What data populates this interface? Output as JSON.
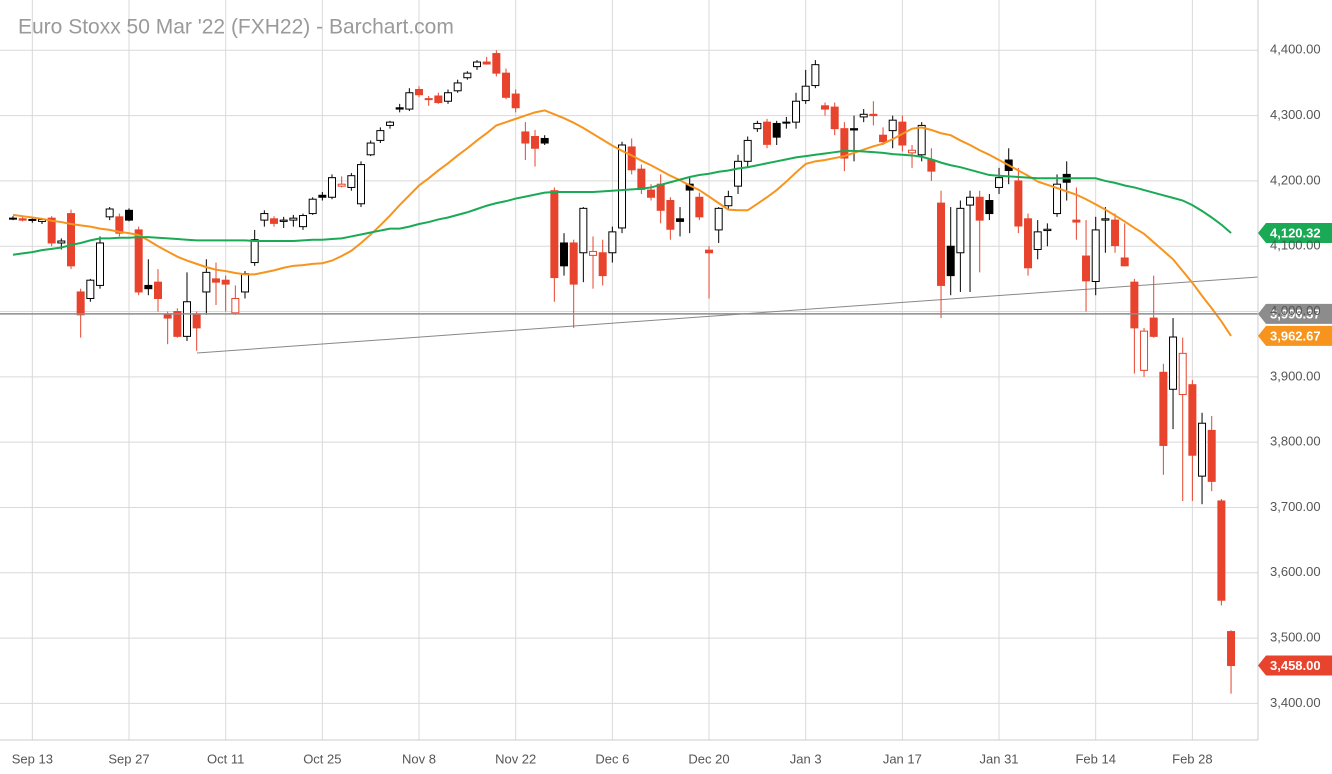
{
  "chart_data": {
    "type": "candlestick",
    "title": "Euro Stoxx 50 Mar '22 (FXH22) - Barchart.com",
    "categories": [
      null,
      null,
      "Sep 13",
      null,
      null,
      null,
      null,
      null,
      null,
      null,
      null,
      null,
      "Sep 27",
      null,
      null,
      null,
      null,
      null,
      null,
      null,
      null,
      null,
      "Oct 11",
      null,
      null,
      null,
      null,
      null,
      null,
      null,
      null,
      null,
      "Oct 25",
      null,
      null,
      null,
      null,
      null,
      null,
      null,
      null,
      null,
      "Nov 8",
      null,
      null,
      null,
      null,
      null,
      null,
      null,
      null,
      null,
      "Nov 22",
      null,
      null,
      null,
      null,
      null,
      null,
      null,
      null,
      null,
      "Dec 6",
      null,
      null,
      null,
      null,
      null,
      null,
      null,
      null,
      null,
      "Dec 20",
      null,
      null,
      null,
      null,
      null,
      null,
      null,
      null,
      null,
      "Jan 3",
      null,
      null,
      null,
      null,
      null,
      null,
      null,
      null,
      null,
      "Jan 17",
      null,
      null,
      null,
      null,
      null,
      null,
      null,
      null,
      null,
      "Jan 31",
      null,
      null,
      null,
      null,
      null,
      null,
      null,
      null,
      null,
      "Feb 14",
      null,
      null,
      null,
      null,
      null,
      null,
      null,
      null,
      null,
      "Feb 28",
      null,
      null,
      null,
      null
    ],
    "open": [
      4143,
      4142,
      4140,
      4138,
      4143,
      4105,
      4150,
      4030,
      4020,
      4040,
      4145,
      4145,
      4155,
      4125,
      4040,
      4045,
      3995,
      4000,
      3962,
      3995,
      4030,
      4050,
      4048,
      3998,
      4030,
      4075,
      4140,
      4142,
      4138,
      4140,
      4130,
      4150,
      4178,
      4175,
      4192,
      4190,
      4165,
      4240,
      4262,
      4285,
      4312,
      4310,
      4340,
      4326,
      4330,
      4322,
      4338,
      4358,
      4375,
      4382,
      4395,
      4365,
      4333,
      4275,
      4268,
      4265,
      4185,
      4105,
      4105,
      4090,
      4086,
      4090,
      4090,
      4128,
      4252,
      4218,
      4186,
      4195,
      4170,
      4142,
      4195,
      4175,
      4094,
      4125,
      4162,
      4192,
      4230,
      4280,
      4290,
      4288,
      4290,
      4290,
      4323,
      4346,
      4315,
      4313,
      4280,
      4280,
      4298,
      4302,
      4270,
      4277,
      4290,
      4243,
      4240,
      4232,
      4166,
      4100,
      4090,
      4163,
      4175,
      4170,
      4190,
      4232,
      4200,
      4142,
      4095,
      4124,
      4150,
      4210,
      4140,
      4085,
      4046,
      4140,
      4140,
      4082,
      4045,
      3910,
      3990,
      3907,
      3881,
      3873,
      3888,
      3748,
      3818,
      3710,
      3510
    ],
    "high": [
      4146,
      4145,
      4143,
      4143,
      4146,
      4112,
      4156,
      4035,
      4050,
      4115,
      4160,
      4150,
      4158,
      4130,
      4080,
      4065,
      4000,
      4005,
      4060,
      4000,
      4080,
      4075,
      4055,
      4040,
      4062,
      4125,
      4155,
      4146,
      4145,
      4148,
      4150,
      4175,
      4183,
      4210,
      4207,
      4212,
      4230,
      4262,
      4282,
      4292,
      4318,
      4342,
      4345,
      4330,
      4335,
      4340,
      4355,
      4368,
      4385,
      4390,
      4400,
      4372,
      4340,
      4290,
      4278,
      4270,
      4190,
      4120,
      4110,
      4160,
      4115,
      4110,
      4130,
      4260,
      4265,
      4225,
      4195,
      4210,
      4175,
      4160,
      4205,
      4182,
      4100,
      4160,
      4185,
      4240,
      4268,
      4292,
      4295,
      4292,
      4298,
      4335,
      4370,
      4385,
      4320,
      4320,
      4290,
      4300,
      4310,
      4322,
      4282,
      4300,
      4300,
      4255,
      4290,
      4250,
      4185,
      4160,
      4170,
      4185,
      4185,
      4180,
      4220,
      4250,
      4220,
      4150,
      4140,
      4135,
      4210,
      4230,
      4190,
      4140,
      4145,
      4160,
      4150,
      4135,
      4050,
      3975,
      4055,
      3920,
      3990,
      3960,
      3895,
      3845,
      3840,
      3713,
      3512
    ],
    "low": [
      4140,
      4138,
      4136,
      4134,
      4100,
      4095,
      4065,
      3960,
      4015,
      4035,
      4140,
      4115,
      4138,
      4025,
      4025,
      4000,
      3950,
      3960,
      3955,
      3940,
      3995,
      4010,
      4000,
      3995,
      4020,
      4070,
      4130,
      4130,
      4128,
      4130,
      4125,
      4148,
      4170,
      4172,
      4190,
      4185,
      4160,
      4238,
      4258,
      4280,
      4305,
      4307,
      4328,
      4315,
      4318,
      4318,
      4335,
      4355,
      4370,
      4378,
      4360,
      4325,
      4305,
      4232,
      4222,
      4255,
      4015,
      4055,
      3975,
      4045,
      4035,
      4040,
      4075,
      4120,
      4210,
      4180,
      4170,
      4135,
      4110,
      4115,
      4120,
      4140,
      4020,
      4105,
      4155,
      4180,
      4220,
      4275,
      4250,
      4255,
      4280,
      4280,
      4318,
      4342,
      4300,
      4270,
      4215,
      4230,
      4290,
      4285,
      4255,
      4250,
      4245,
      4220,
      4230,
      4200,
      3990,
      4025,
      4030,
      4030,
      4060,
      4140,
      4180,
      4195,
      4120,
      4055,
      4080,
      4100,
      4145,
      4170,
      4110,
      4000,
      4025,
      4090,
      4090,
      4070,
      3905,
      3900,
      3960,
      3750,
      3820,
      3710,
      3710,
      3705,
      3725,
      3550,
      3415
    ],
    "close": [
      4142,
      4140,
      4141,
      4141,
      4105,
      4108,
      4070,
      3995,
      4048,
      4105,
      4157,
      4120,
      4140,
      4030,
      4035,
      4020,
      3990,
      3962,
      4015,
      3975,
      4060,
      4045,
      4042,
      4020,
      4058,
      4110,
      4150,
      4135,
      4140,
      4143,
      4147,
      4172,
      4175,
      4205,
      4195,
      4208,
      4225,
      4258,
      4277,
      4290,
      4310,
      4335,
      4332,
      4325,
      4320,
      4335,
      4350,
      4365,
      4382,
      4379,
      4365,
      4328,
      4312,
      4258,
      4250,
      4258,
      4052,
      4070,
      4042,
      4158,
      4092,
      4055,
      4122,
      4255,
      4217,
      4187,
      4175,
      4155,
      4126,
      4138,
      4186,
      4145,
      4090,
      4158,
      4176,
      4230,
      4262,
      4288,
      4256,
      4267,
      4289,
      4322,
      4345,
      4378,
      4310,
      4280,
      4235,
      4278,
      4302,
      4300,
      4260,
      4293,
      4255,
      4247,
      4285,
      4215,
      4040,
      4055,
      4158,
      4175,
      4140,
      4150,
      4205,
      4216,
      4131,
      4067,
      4122,
      4126,
      4195,
      4198,
      4137,
      4047,
      4125,
      4142,
      4101,
      4070,
      3975,
      3970,
      3962,
      3795,
      3961,
      3936,
      3780,
      3829,
      3740,
      3558,
      3458
    ],
    "up_color": "#000000",
    "down_color": "#e8432d",
    "series": [
      {
        "color": "#f7941d",
        "values": [
          4148,
          4146,
          4144,
          4142,
          4139,
          4137,
          4134,
          4132,
          4130,
          4127,
          4125,
          4122,
          4120,
          4117,
          4109,
          4100,
          4092,
          4084,
          4078,
          4073,
          4068,
          4064,
          4062,
          4059,
          4057,
          4057,
          4060,
          4063,
          4067,
          4070,
          4071,
          4073,
          4074,
          4078,
          4085,
          4093,
          4105,
          4118,
          4132,
          4147,
          4163,
          4178,
          4193,
          4204,
          4216,
          4227,
          4239,
          4250,
          4262,
          4273,
          4285,
          4290,
          4295,
          4300,
          4305,
          4308,
          4302,
          4296,
          4289,
          4281,
          4272,
          4263,
          4254,
          4246,
          4239,
          4231,
          4224,
          4216,
          4208,
          4201,
          4193,
          4186,
          4176,
          4166,
          4156,
          4155,
          4155,
          4165,
          4175,
          4186,
          4199,
          4213,
          4226,
          4230,
          4232,
          4235,
          4238,
          4243,
          4248,
          4253,
          4257,
          4264,
          4272,
          4280,
          4282,
          4278,
          4273,
          4270,
          4262,
          4255,
          4247,
          4240,
          4232,
          4224,
          4216,
          4208,
          4199,
          4194,
          4189,
          4184,
          4179,
          4172,
          4164,
          4156,
          4147,
          4138,
          4128,
          4119,
          4106,
          4093,
          4080,
          4062,
          4044,
          4024,
          4005,
          3985,
          3962.67
        ]
      },
      {
        "color": "#1aaa55",
        "values": [
          4087,
          4089,
          4091,
          4094,
          4096,
          4098,
          4102,
          4105,
          4109,
          4112,
          4112,
          4113,
          4113,
          4114,
          4114,
          4113,
          4112,
          4111,
          4110,
          4109,
          4109,
          4109,
          4109,
          4109,
          4109,
          4108,
          4108,
          4108,
          4108,
          4108,
          4109,
          4110,
          4110,
          4111,
          4112,
          4115,
          4118,
          4121,
          4124,
          4127,
          4127,
          4130,
          4134,
          4137,
          4141,
          4144,
          4148,
          4152,
          4157,
          4162,
          4166,
          4169,
          4173,
          4176,
          4179,
          4182,
          4183,
          4183,
          4183,
          4183,
          4183,
          4184,
          4185,
          4186,
          4187,
          4188,
          4190,
          4194,
          4198,
          4202,
          4206,
          4209,
          4211,
          4214,
          4216,
          4219,
          4221,
          4224,
          4227,
          4230,
          4233,
          4236,
          4238,
          4240,
          4242,
          4244,
          4246,
          4246,
          4245,
          4244,
          4243,
          4241,
          4240,
          4239,
          4237,
          4233,
          4228,
          4224,
          4221,
          4217,
          4213,
          4209,
          4208,
          4207,
          4206,
          4205,
          4204,
          4204,
          4204,
          4204,
          4204,
          4204,
          4204,
          4200,
          4197,
          4193,
          4190,
          4186,
          4182,
          4178,
          4174,
          4170,
          4163,
          4154,
          4144,
          4133,
          4120.32
        ]
      }
    ],
    "price_tags": [
      {
        "value": 4120.32,
        "label": "4,120.32",
        "color": "#1aaa55"
      },
      {
        "value": 3996.37,
        "label": "3,996.37",
        "color": "#8c8c8c"
      },
      {
        "value": 3962.67,
        "label": "3,962.67",
        "color": "#f7941d"
      },
      {
        "value": 3458,
        "label": "3,458.00",
        "color": "#e8432d"
      }
    ],
    "ylim": [
      3344,
      4477
    ],
    "yticks": [
      {
        "value": 3400,
        "label": "3,400.00"
      },
      {
        "value": 3500,
        "label": "3,500.00"
      },
      {
        "value": 3600,
        "label": "3,600.00"
      },
      {
        "value": 3700,
        "label": "3,700.00"
      },
      {
        "value": 3800,
        "label": "3,800.00"
      },
      {
        "value": 3900,
        "label": "3,900.00"
      },
      {
        "value": 4000,
        "label": "4,000.00"
      },
      {
        "value": 4100,
        "label": "4,100.00"
      },
      {
        "value": 4200,
        "label": "4,200.00"
      },
      {
        "value": 4300,
        "label": "4,300.00"
      },
      {
        "value": 4400,
        "label": "4,400.00"
      }
    ],
    "grid": true
  }
}
